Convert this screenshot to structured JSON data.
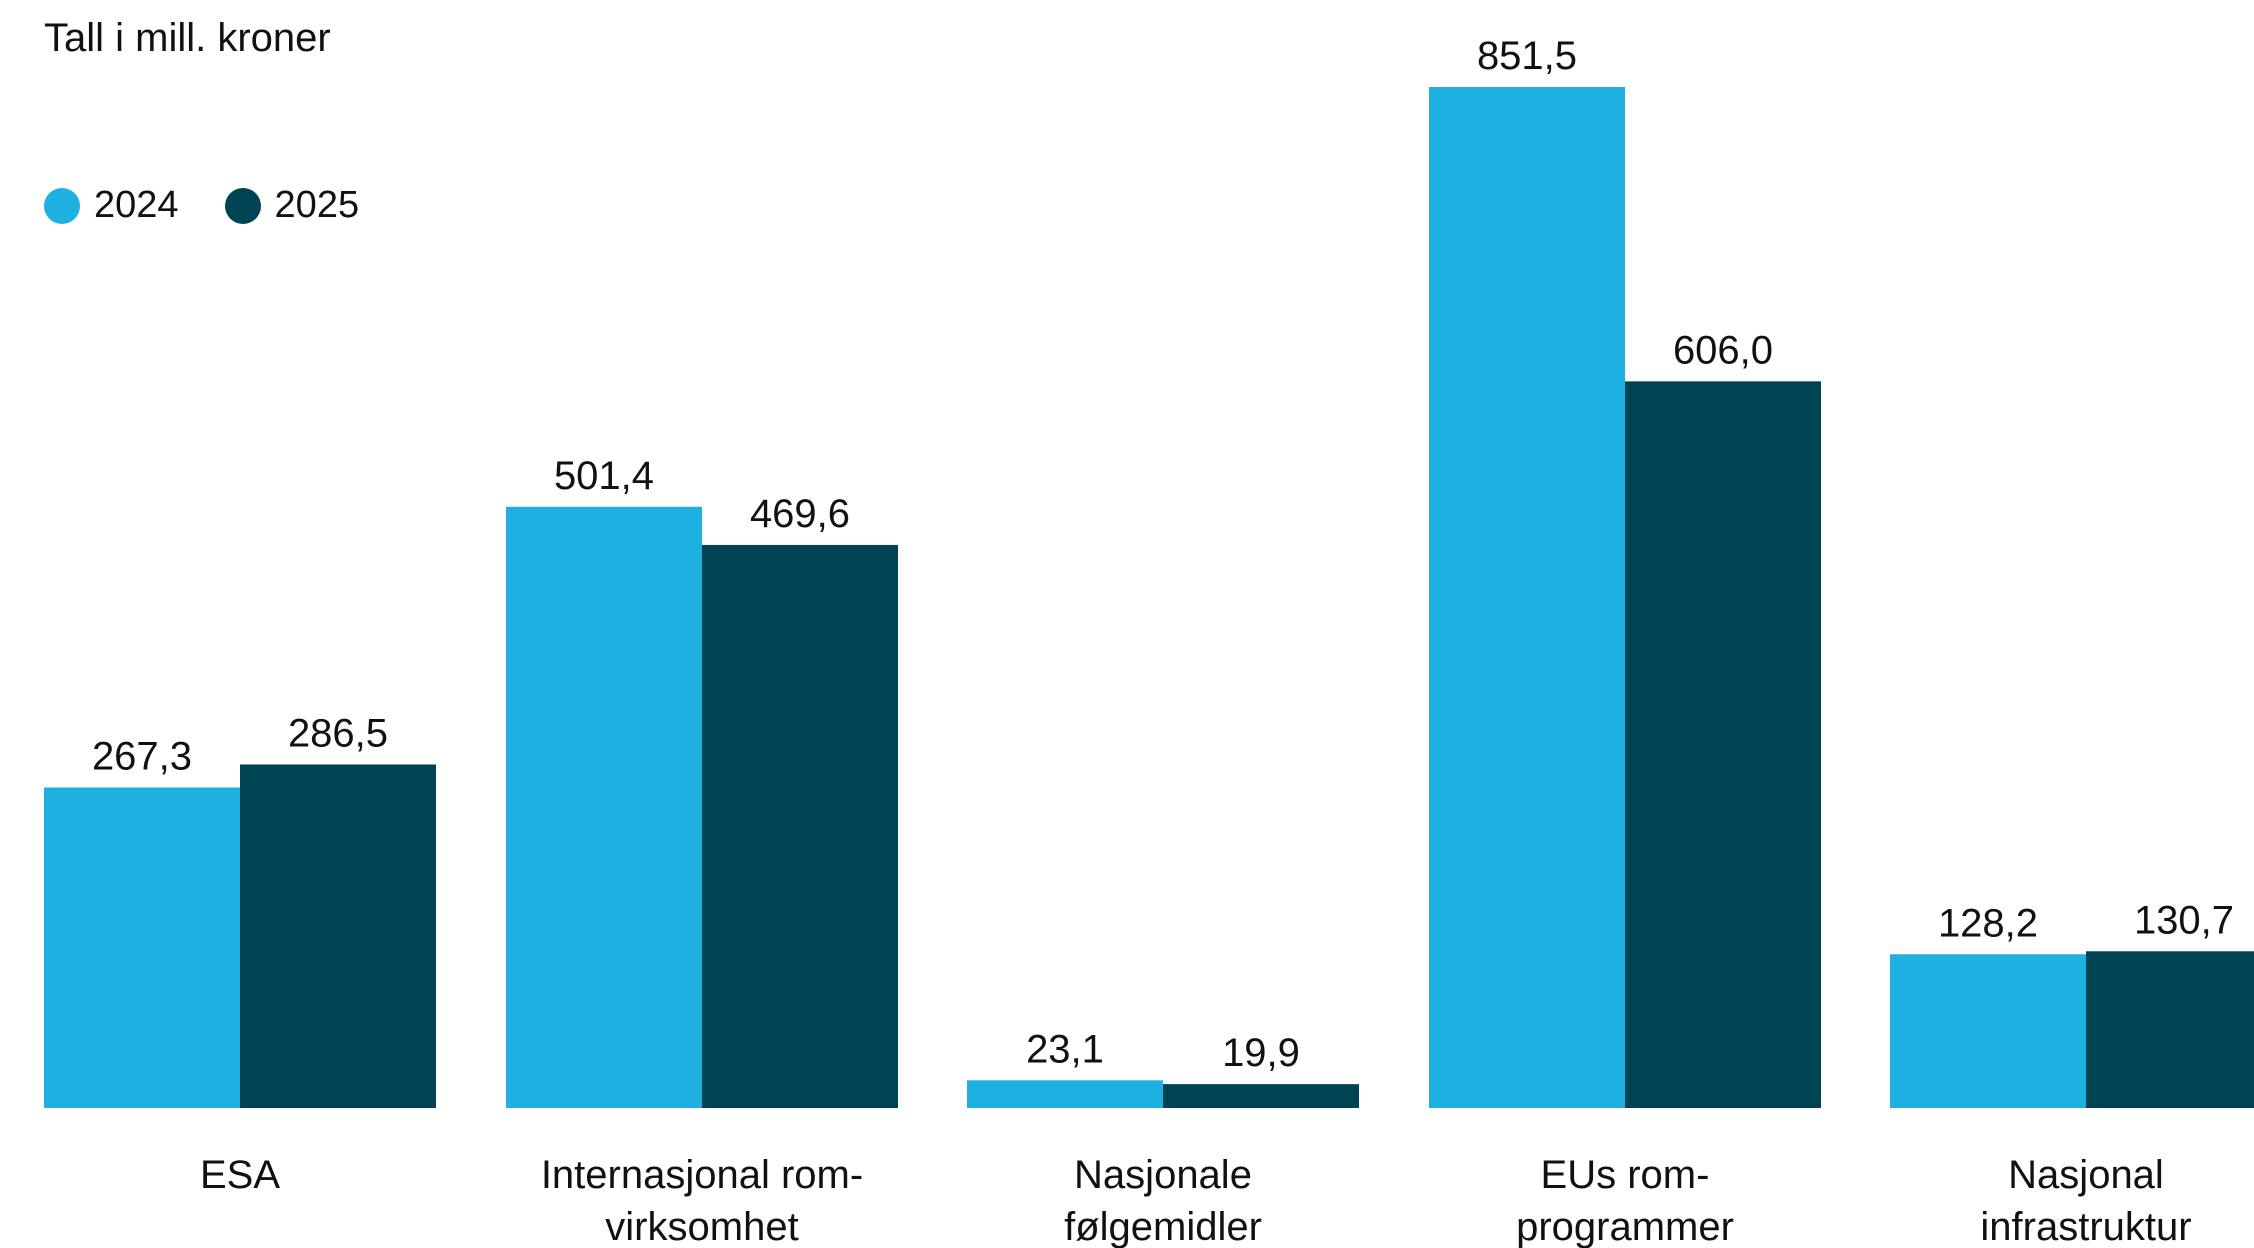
{
  "chart_data": {
    "type": "bar",
    "unit_label": "Tall i mill. kroner",
    "categories": [
      [
        "ESA"
      ],
      [
        "Internasjonal rom-",
        "virksomhet"
      ],
      [
        "Nasjonale",
        "følgemidler"
      ],
      [
        "EUs rom-",
        "programmer"
      ],
      [
        "Nasjonal",
        "infrastruktur"
      ]
    ],
    "series": [
      {
        "name": "2024",
        "color": "#1eb0e0",
        "values": [
          267.3,
          501.4,
          23.1,
          851.5,
          128.2
        ],
        "labels": [
          "267,3",
          "501,4",
          "23,1",
          "851,5",
          "128,2"
        ]
      },
      {
        "name": "2025",
        "color": "#004352",
        "values": [
          286.5,
          469.6,
          19.9,
          606.0,
          130.7
        ],
        "labels": [
          "286,5",
          "469,6",
          "19,9",
          "606,0",
          "130,7"
        ]
      }
    ],
    "legend_position": "top-left",
    "grid": false,
    "axis_visible": false
  }
}
